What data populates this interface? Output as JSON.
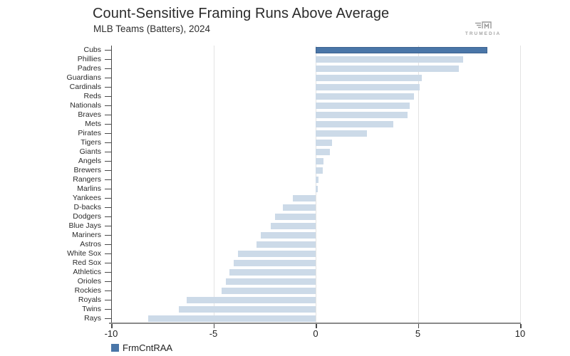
{
  "header": {
    "title": "Count-Sensitive Framing Runs Above Average",
    "subtitle": "MLB Teams (Batters), 2024"
  },
  "logo": {
    "brand": "TRUMEDIA"
  },
  "legend": {
    "label": "FrmCntRAA",
    "color": "#4a76a8"
  },
  "chart_data": {
    "type": "bar",
    "orientation": "horizontal",
    "title": "Count-Sensitive Framing Runs Above Average",
    "subtitle": "MLB Teams (Batters), 2024",
    "xlabel": "",
    "ylabel": "",
    "xlim": [
      -10,
      10
    ],
    "x_ticks": [
      -10,
      -5,
      0,
      5,
      10
    ],
    "gridline_values": [
      -5,
      0,
      5,
      10
    ],
    "legend_entries": [
      "FrmCntRAA"
    ],
    "series_name": "FrmCntRAA",
    "highlight_category": "Cubs",
    "colors": {
      "highlight": "#4a76a8",
      "default": "#ccdae8"
    },
    "categories": [
      "Cubs",
      "Phillies",
      "Padres",
      "Guardians",
      "Cardinals",
      "Reds",
      "Nationals",
      "Braves",
      "Mets",
      "Pirates",
      "Tigers",
      "Giants",
      "Angels",
      "Brewers",
      "Rangers",
      "Marlins",
      "Yankees",
      "D-backs",
      "Dodgers",
      "Blue Jays",
      "Mariners",
      "Astros",
      "White Sox",
      "Red Sox",
      "Athletics",
      "Orioles",
      "Rockies",
      "Royals",
      "Twins",
      "Rays"
    ],
    "values": [
      8.4,
      7.2,
      7.0,
      5.2,
      5.1,
      4.8,
      4.6,
      4.5,
      3.8,
      2.5,
      0.8,
      0.7,
      0.4,
      0.35,
      0.15,
      0.1,
      -1.1,
      -1.6,
      -2.0,
      -2.2,
      -2.7,
      -2.9,
      -3.8,
      -4.0,
      -4.2,
      -4.4,
      -4.6,
      -6.3,
      -6.7,
      -8.2
    ]
  }
}
